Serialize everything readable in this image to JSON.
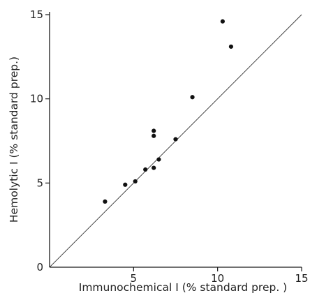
{
  "chart_data": {
    "type": "scatter",
    "title": "",
    "xlabel": "Immunochemical I (% standard prep. )",
    "ylabel": "Hemolytic I (% standard prep.)",
    "xlim": [
      0,
      15
    ],
    "ylim": [
      0,
      15
    ],
    "x_ticks": [
      5,
      10,
      15
    ],
    "y_ticks": [
      0,
      5,
      10,
      15
    ],
    "x_tick_labels": [
      "5",
      "10",
      "15"
    ],
    "y_tick_labels": [
      "0",
      "5",
      "10",
      "15"
    ],
    "grid": false,
    "reference_line": {
      "type": "identity",
      "from": [
        0,
        0
      ],
      "to": [
        15,
        15
      ]
    },
    "series": [
      {
        "points": [
          {
            "x": 3.3,
            "y": 3.9
          },
          {
            "x": 4.5,
            "y": 4.9
          },
          {
            "x": 5.1,
            "y": 5.1
          },
          {
            "x": 5.7,
            "y": 5.8
          },
          {
            "x": 6.2,
            "y": 5.9
          },
          {
            "x": 6.5,
            "y": 6.4
          },
          {
            "x": 6.2,
            "y": 7.8
          },
          {
            "x": 6.2,
            "y": 8.1
          },
          {
            "x": 7.5,
            "y": 7.6
          },
          {
            "x": 8.5,
            "y": 10.1
          },
          {
            "x": 10.3,
            "y": 14.6
          },
          {
            "x": 10.8,
            "y": 13.1
          }
        ]
      }
    ],
    "colors": {
      "points": "#111111",
      "axes": "#1a1a1a",
      "line": "#333333"
    }
  }
}
